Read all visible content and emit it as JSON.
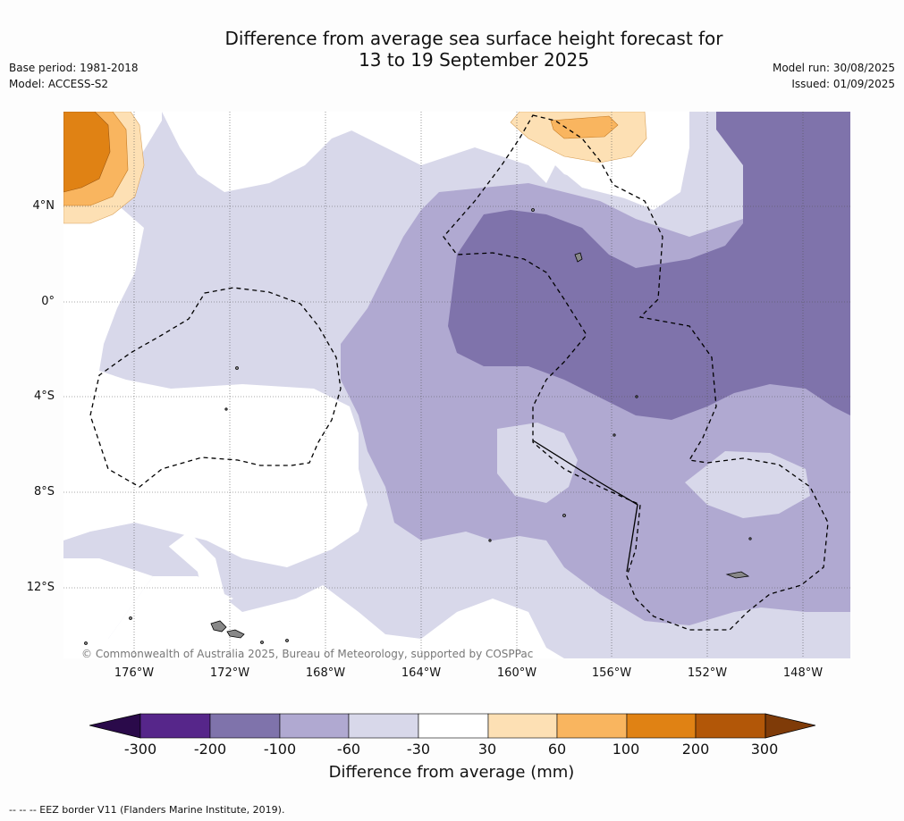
{
  "title": {
    "line1": "Difference from average sea surface height forecast for",
    "line2": "13 to 19 September 2025"
  },
  "meta": {
    "base_period": "Base period: 1981-2018",
    "model": "Model: ACCESS-S2",
    "model_run": "Model run: 30/08/2025",
    "issued": "Issued: 01/09/2025"
  },
  "map": {
    "lat_labels": [
      "4°N",
      "0°",
      "4°S",
      "8°S",
      "12°S"
    ],
    "lon_labels": [
      "176°W",
      "172°W",
      "168°W",
      "164°W",
      "160°W",
      "156°W",
      "152°W",
      "148°W"
    ],
    "credit": "© Commonwealth of Australia 2025, Bureau of Meteorology, supported by COSPPac",
    "colors": {
      "neg_300": "#2a0a4a",
      "neg_200": "#56268a",
      "neg_100": "#7f73ab",
      "neg_60": "#b0a9d1",
      "neg_30": "#d8d8ea",
      "neutral": "#ffffff",
      "pos_30": "#fde0b4",
      "pos_60": "#f9b55f",
      "pos_100": "#e08214",
      "pos_200": "#b25708",
      "pos_300": "#7f3b08"
    }
  },
  "colorbar": {
    "labels": [
      "-300",
      "-200",
      "-100",
      "-60",
      "-30",
      "30",
      "60",
      "100",
      "200",
      "300"
    ],
    "title": "Difference from average (mm)"
  },
  "footer": "--  --  -- EEZ border V11 (Flanders Marine Institute, 2019)."
}
